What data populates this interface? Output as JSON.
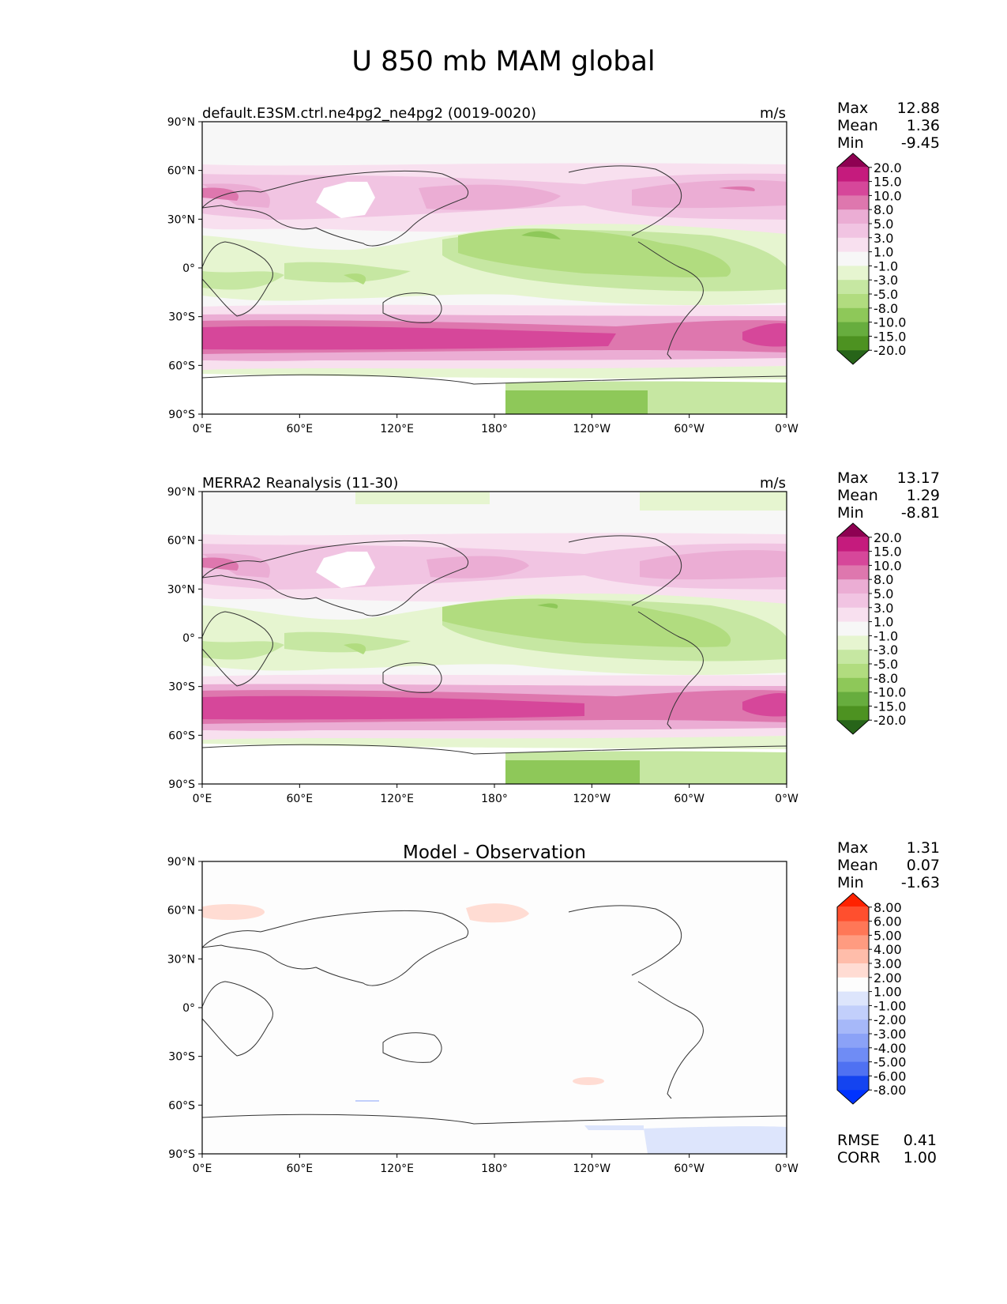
{
  "figure_title": "U 850 mb MAM global",
  "axis": {
    "lat_ticks": [
      "90°N",
      "60°N",
      "30°N",
      "0°",
      "30°S",
      "60°S",
      "90°S"
    ],
    "lon_ticks": [
      "0°E",
      "60°E",
      "120°E",
      "180°",
      "120°W",
      "60°W",
      "0°W"
    ]
  },
  "panels": [
    {
      "title": "default.E3SM.ctrl.ne4pg2_ne4pg2 (0019-0020)",
      "units": "m/s",
      "stats": {
        "Max": "12.88",
        "Mean": "1.36",
        "Min": "-9.45"
      },
      "colorbar_labels": [
        "20.0",
        "15.0",
        "10.0",
        "8.0",
        "5.0",
        "3.0",
        "1.0",
        "-1.0",
        "-3.0",
        "-5.0",
        "-8.0",
        "-10.0",
        "-15.0",
        "-20.0"
      ]
    },
    {
      "title": "MERRA2 Reanalysis (11-30)",
      "units": "m/s",
      "stats": {
        "Max": "13.17",
        "Mean": "1.29",
        "Min": "-8.81"
      },
      "colorbar_labels": [
        "20.0",
        "15.0",
        "10.0",
        "8.0",
        "5.0",
        "3.0",
        "1.0",
        "-1.0",
        "-3.0",
        "-5.0",
        "-8.0",
        "-10.0",
        "-15.0",
        "-20.0"
      ]
    },
    {
      "title": "Model - Observation",
      "units": "",
      "stats": {
        "Max": "1.31",
        "Mean": "0.07",
        "Min": "-1.63"
      },
      "colorbar_labels": [
        "8.00",
        "6.00",
        "5.00",
        "4.00",
        "3.00",
        "2.00",
        "1.00",
        "-1.00",
        "-2.00",
        "-3.00",
        "-4.00",
        "-5.00",
        "-6.00",
        "-8.00"
      ],
      "metrics": {
        "RMSE": "0.41",
        "CORR": "1.00"
      }
    }
  ],
  "colors": {
    "field_scale": [
      "#8e0152",
      "#c51b7d",
      "#d6479a",
      "#de77ae",
      "#ebadd4",
      "#f1c4e2",
      "#f8e0ef",
      "#f7f7f7",
      "#e6f5d0",
      "#c6e7a2",
      "#b1dc7f",
      "#8ec859",
      "#67ad3e",
      "#4d9221",
      "#276419"
    ],
    "diff_scale": [
      "#ff2200",
      "#ff4f2e",
      "#ff7757",
      "#ff9b80",
      "#ffbdaa",
      "#ffdcd3",
      "#fdfdfd",
      "#dde5fc",
      "#c2cffb",
      "#a6b8f9",
      "#8ba2f7",
      "#6f8cf5",
      "#4f71f2",
      "#1444f0",
      "#0033ff"
    ]
  }
}
